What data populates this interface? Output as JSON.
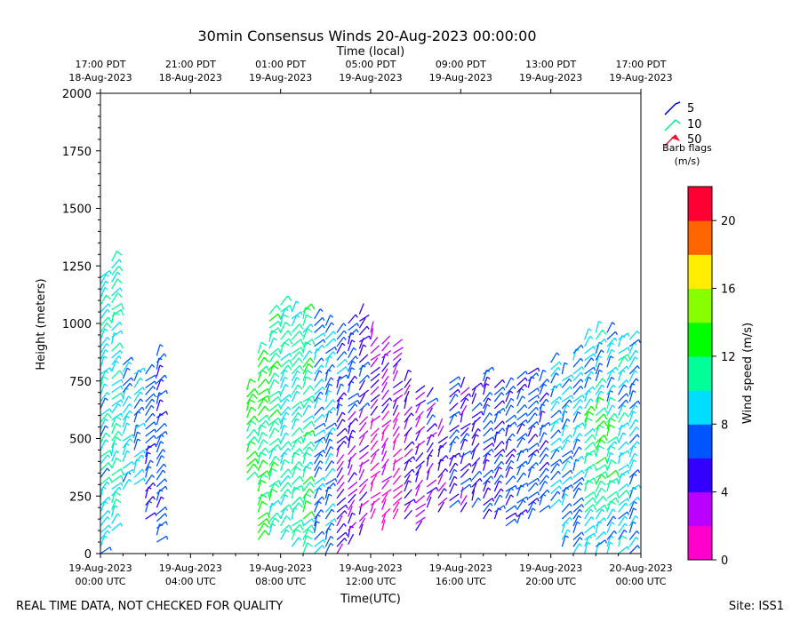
{
  "chart_data": {
    "type": "wind-barb-profile",
    "title": "30min Consensus Winds 20-Aug-2023 00:00:00",
    "top_axis_label": "Time (local)",
    "xlabel": "Time(UTC)",
    "ylabel": "Height (meters)",
    "ylim": [
      0,
      2000
    ],
    "yticks": [
      0,
      250,
      500,
      750,
      1000,
      1250,
      1500,
      1750,
      2000
    ],
    "xlim_hours_utc": [
      0,
      24
    ],
    "bottom_ticks": [
      {
        "hour": 0,
        "line1": "19-Aug-2023",
        "line2": "00:00 UTC"
      },
      {
        "hour": 4,
        "line1": "19-Aug-2023",
        "line2": "04:00 UTC"
      },
      {
        "hour": 8,
        "line1": "19-Aug-2023",
        "line2": "08:00 UTC"
      },
      {
        "hour": 12,
        "line1": "19-Aug-2023",
        "line2": "12:00 UTC"
      },
      {
        "hour": 16,
        "line1": "19-Aug-2023",
        "line2": "16:00 UTC"
      },
      {
        "hour": 20,
        "line1": "19-Aug-2023",
        "line2": "20:00 UTC"
      },
      {
        "hour": 24,
        "line1": "20-Aug-2023",
        "line2": "00:00 UTC"
      }
    ],
    "top_ticks": [
      {
        "hour": 0,
        "line1": "17:00 PDT",
        "line2": "18-Aug-2023"
      },
      {
        "hour": 4,
        "line1": "21:00 PDT",
        "line2": "18-Aug-2023"
      },
      {
        "hour": 8,
        "line1": "01:00 PDT",
        "line2": "19-Aug-2023"
      },
      {
        "hour": 12,
        "line1": "05:00 PDT",
        "line2": "19-Aug-2023"
      },
      {
        "hour": 16,
        "line1": "09:00 PDT",
        "line2": "19-Aug-2023"
      },
      {
        "hour": 20,
        "line1": "13:00 PDT",
        "line2": "19-Aug-2023"
      },
      {
        "hour": 24,
        "line1": "17:00 PDT",
        "line2": "19-Aug-2023"
      }
    ],
    "legend": {
      "entries": [
        {
          "label": "5",
          "color": "#0000cc"
        },
        {
          "label": "10",
          "color": "#00ee88"
        },
        {
          "label": "50",
          "color": "#ee1133"
        }
      ],
      "title_line1": "Barb flags",
      "title_line2": "(m/s)"
    },
    "colorbar": {
      "label": "Wind speed (m/s)",
      "range": [
        0,
        22
      ],
      "ticks": [
        0,
        4,
        8,
        12,
        16,
        20
      ],
      "colors": [
        "#ff00cc",
        "#bb00ff",
        "#3300ff",
        "#0055ff",
        "#00ddff",
        "#00ff99",
        "#00ff00",
        "#88ff00",
        "#ffee00",
        "#ff6600",
        "#ff0033"
      ]
    },
    "series": [
      {
        "name": "wind-barbs",
        "columns": [
          {
            "hour": 0.0,
            "min": 0,
            "max": 1200,
            "speed": 9
          },
          {
            "hour": 0.5,
            "min": 100,
            "max": 1280,
            "speed": 10
          },
          {
            "hour": 1.0,
            "min": 280,
            "max": 830,
            "speed": 8.5
          },
          {
            "hour": 1.5,
            "min": 300,
            "max": 790,
            "speed": 8.5
          },
          {
            "hour": 2.0,
            "min": 150,
            "max": 780,
            "speed": 6.5
          },
          {
            "hour": 2.5,
            "min": 50,
            "max": 880,
            "speed": 6.5
          },
          {
            "hour": 6.5,
            "min": 320,
            "max": 720,
            "speed": 12
          },
          {
            "hour": 7.0,
            "min": 60,
            "max": 870,
            "speed": 12
          },
          {
            "hour": 7.5,
            "min": 80,
            "max": 1040,
            "speed": 11
          },
          {
            "hour": 8.0,
            "min": 60,
            "max": 1090,
            "speed": 10
          },
          {
            "hour": 8.5,
            "min": 30,
            "max": 1060,
            "speed": 10.5
          },
          {
            "hour": 9.0,
            "min": 0,
            "max": 1070,
            "speed": 11
          },
          {
            "hour": 9.5,
            "min": 0,
            "max": 1020,
            "speed": 7.5
          },
          {
            "hour": 10.0,
            "min": 0,
            "max": 1010,
            "speed": 8
          },
          {
            "hour": 10.5,
            "min": 0,
            "max": 960,
            "speed": 7
          },
          {
            "hour": 11.0,
            "min": 40,
            "max": 1000,
            "speed": 6.5
          },
          {
            "hour": 11.5,
            "min": 80,
            "max": 1040,
            "speed": 5.5
          },
          {
            "hour": 12.0,
            "min": 150,
            "max": 960,
            "speed": 3.5
          },
          {
            "hour": 12.5,
            "min": 100,
            "max": 920,
            "speed": 4
          },
          {
            "hour": 13.0,
            "min": 150,
            "max": 900,
            "speed": 3.5
          },
          {
            "hour": 13.5,
            "min": 150,
            "max": 760,
            "speed": 4.5
          },
          {
            "hour": 14.0,
            "min": 100,
            "max": 700,
            "speed": 3.5
          },
          {
            "hour": 14.5,
            "min": 200,
            "max": 680,
            "speed": 5
          },
          {
            "hour": 15.0,
            "min": 180,
            "max": 560,
            "speed": 4.5
          },
          {
            "hour": 15.5,
            "min": 200,
            "max": 750,
            "speed": 6
          },
          {
            "hour": 16.0,
            "min": 180,
            "max": 740,
            "speed": 5
          },
          {
            "hour": 16.5,
            "min": 200,
            "max": 720,
            "speed": 5.5
          },
          {
            "hour": 17.0,
            "min": 150,
            "max": 780,
            "speed": 6.5
          },
          {
            "hour": 17.5,
            "min": 150,
            "max": 740,
            "speed": 6.5
          },
          {
            "hour": 18.0,
            "min": 120,
            "max": 720,
            "speed": 6.5
          },
          {
            "hour": 18.5,
            "min": 130,
            "max": 760,
            "speed": 6.5
          },
          {
            "hour": 19.0,
            "min": 150,
            "max": 780,
            "speed": 6.5
          },
          {
            "hour": 19.5,
            "min": 180,
            "max": 760,
            "speed": 6.5
          },
          {
            "hour": 20.0,
            "min": 200,
            "max": 840,
            "speed": 8
          },
          {
            "hour": 20.5,
            "min": 30,
            "max": 800,
            "speed": 8
          },
          {
            "hour": 21.0,
            "min": 0,
            "max": 880,
            "speed": 8
          },
          {
            "hour": 21.5,
            "min": 0,
            "max": 950,
            "speed": 8.5
          },
          {
            "hour": 22.0,
            "min": 0,
            "max": 980,
            "speed": 9
          },
          {
            "hour": 22.5,
            "min": 0,
            "max": 960,
            "speed": 8.5
          },
          {
            "hour": 23.0,
            "min": 0,
            "max": 930,
            "speed": 9
          },
          {
            "hour": 23.5,
            "min": 0,
            "max": 950,
            "speed": 8.5
          }
        ]
      }
    ]
  },
  "footer": {
    "left_note": "REAL TIME DATA, NOT CHECKED FOR QUALITY",
    "site": "Site: ISS1"
  }
}
